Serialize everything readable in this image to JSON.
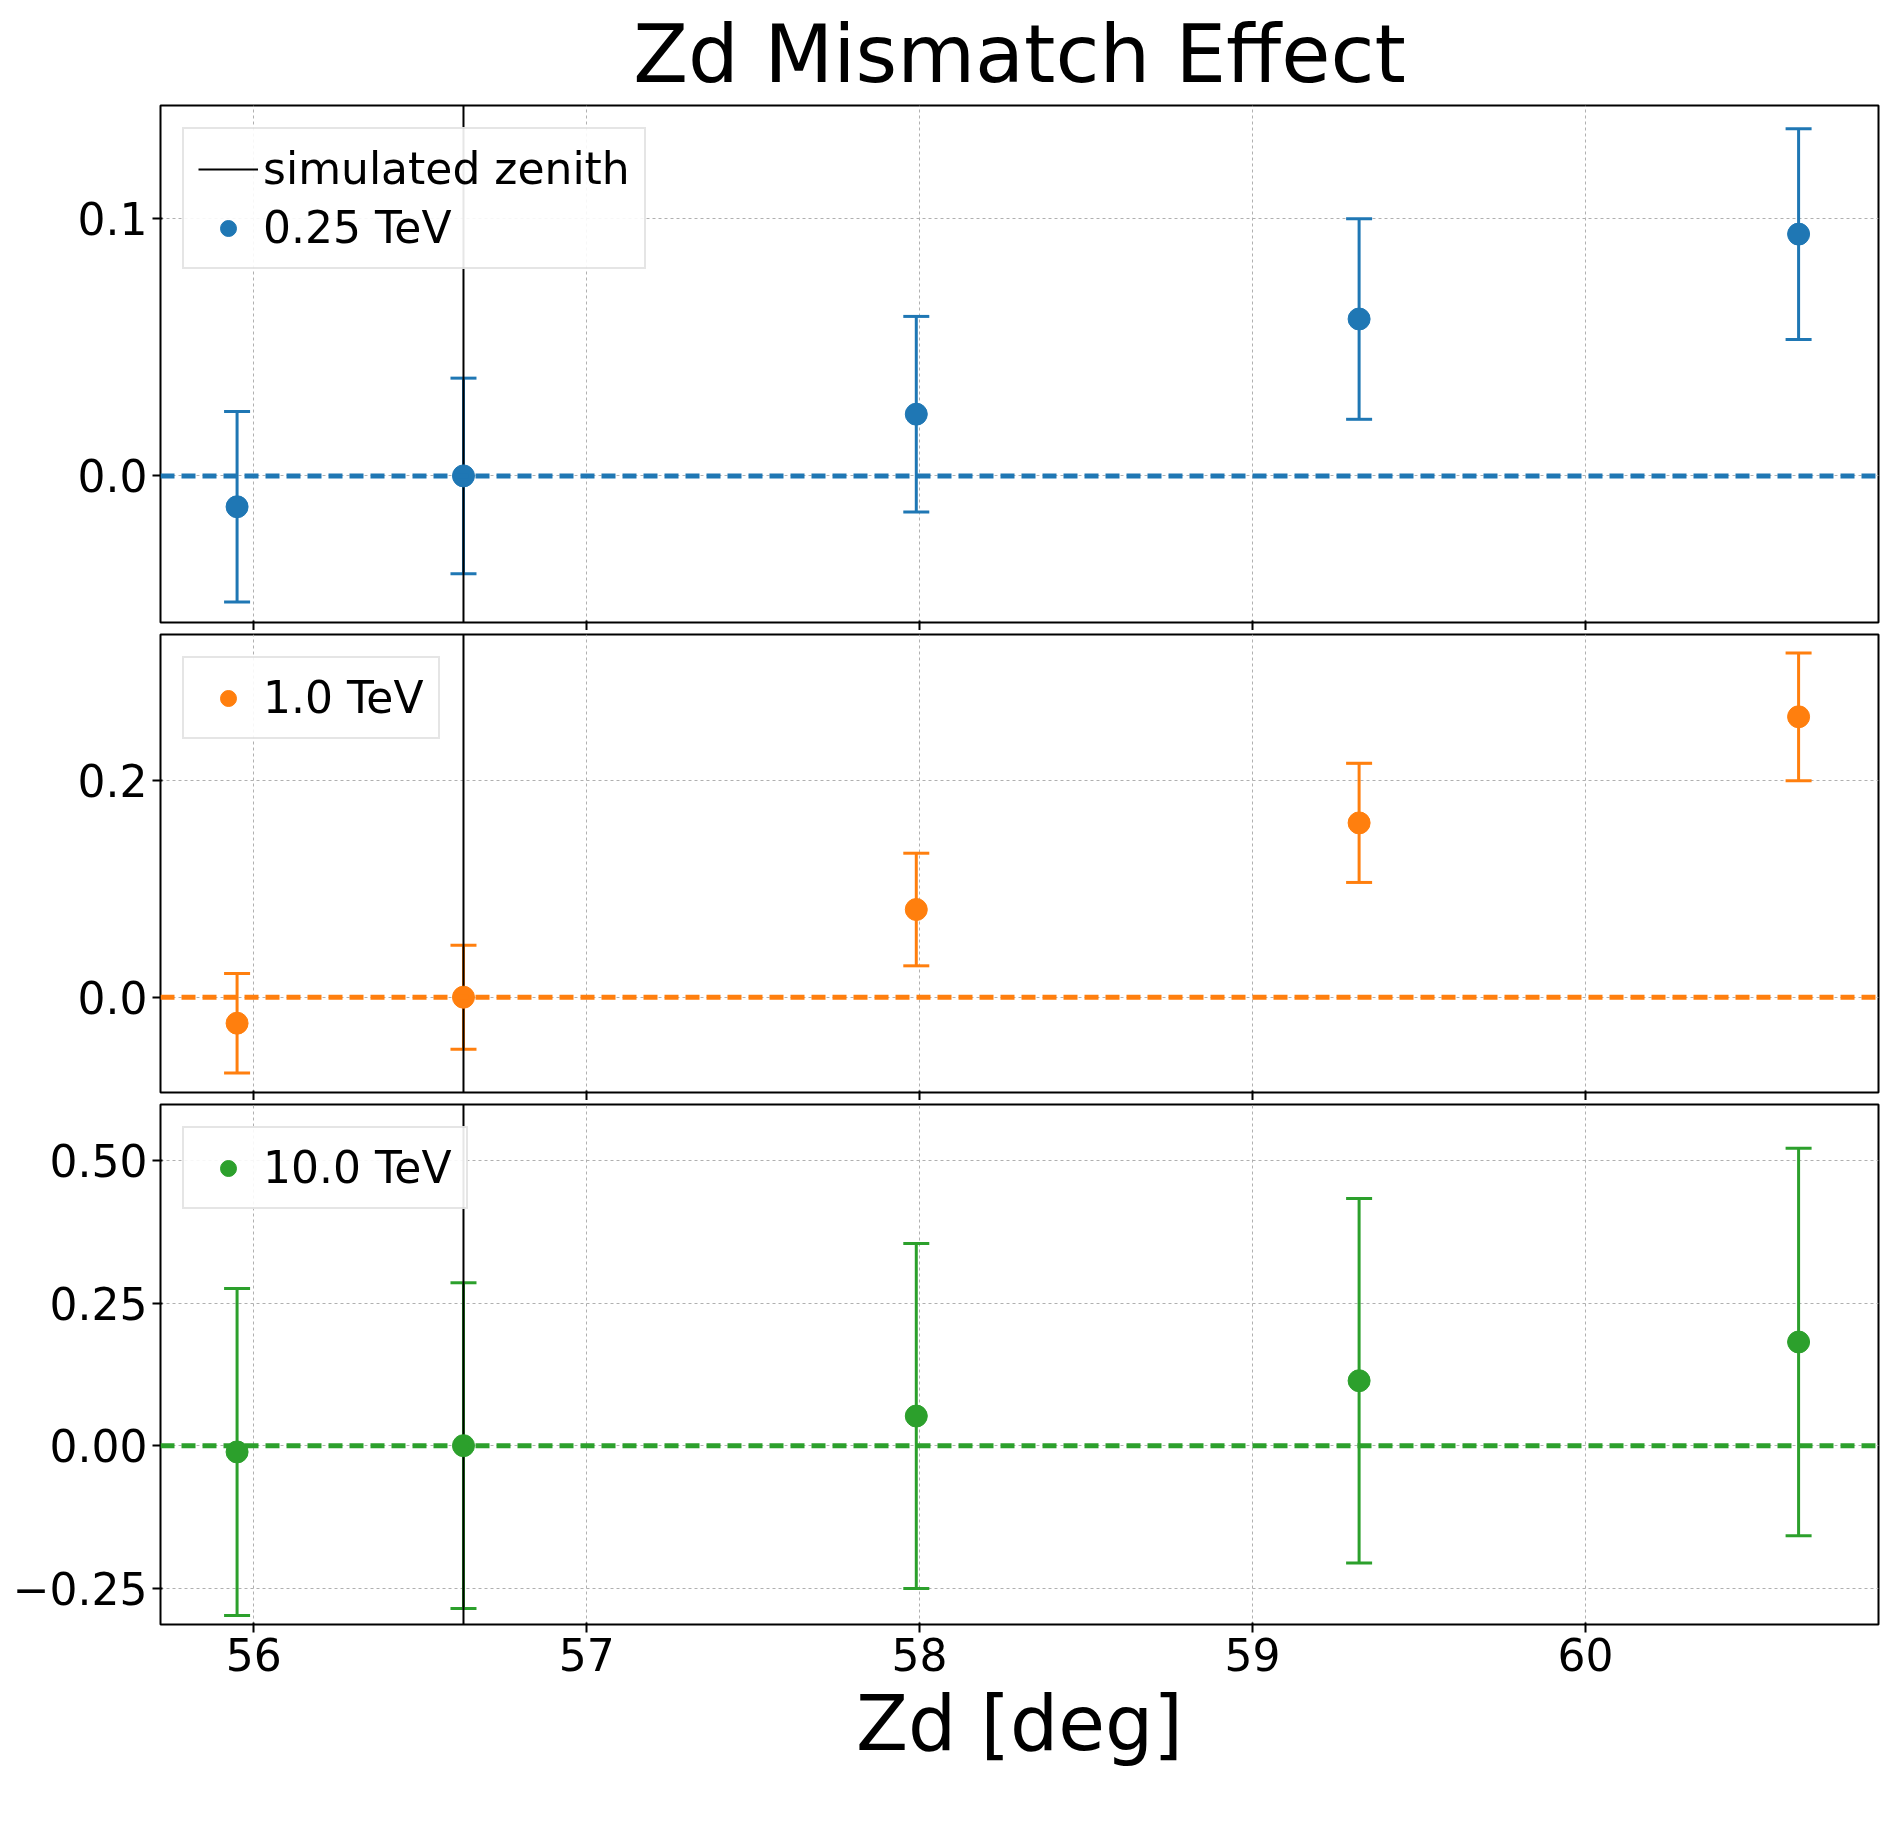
{
  "chart_data": [
    {
      "type": "scatter",
      "title": "Zd Mismatch Effect",
      "x": [
        55.95,
        56.63,
        57.99,
        59.32,
        60.64
      ],
      "series": [
        {
          "name": "0.25 TeV",
          "color": "#1f77b4",
          "values": [
            -0.012,
            0,
            0.024,
            0.061,
            0.094
          ],
          "errors": [
            0.037,
            0.038,
            0.038,
            0.039,
            0.041
          ]
        }
      ],
      "xlim": [
        55.72,
        60.88
      ],
      "ylim": [
        -0.057,
        0.144
      ],
      "yticks": [
        {
          "value": 0,
          "label": "0.0"
        },
        0.1
      ],
      "xticks": [
        56,
        57,
        58,
        59,
        60
      ],
      "tick_labels": "y",
      "ref_lines": [
        {
          "axis": "x",
          "value": 56.63,
          "label": "simulated zenith",
          "color": "#000000",
          "line_style": "solid"
        },
        {
          "axis": "y",
          "value": 0,
          "color": "#1f77b4",
          "line_style": "dashed"
        }
      ],
      "grid": true,
      "legend": "top left",
      "marker": "circle"
    },
    {
      "type": "scatter",
      "x": [
        55.95,
        56.63,
        57.99,
        59.32,
        60.64
      ],
      "series": [
        {
          "name": "1.0 TeV",
          "color": "#ff7f0e",
          "values": [
            -0.024,
            0,
            0.081,
            0.161,
            0.259
          ],
          "errors": [
            0.046,
            0.048,
            0.052,
            0.055,
            0.059
          ]
        }
      ],
      "xlim": [
        55.72,
        60.88
      ],
      "ylim": [
        -0.088,
        0.335
      ],
      "yticks": [
        {
          "value": 0,
          "label": "0.0"
        },
        0.2
      ],
      "xticks": [
        56,
        57,
        58,
        59,
        60
      ],
      "tick_labels": "y",
      "ref_lines": [
        {
          "axis": "x",
          "value": 56.63,
          "color": "#000000",
          "line_style": "solid"
        },
        {
          "axis": "y",
          "value": 0,
          "color": "#ff7f0e",
          "line_style": "dashed"
        }
      ],
      "grid": true,
      "legend": "top left",
      "marker": "circle"
    },
    {
      "type": "scatter",
      "xlabel": "Zd [deg]",
      "x": [
        55.95,
        56.63,
        57.99,
        59.32,
        60.64
      ],
      "series": [
        {
          "name": "10.0 TeV",
          "color": "#2ca02c",
          "values": [
            -0.011,
            0,
            0.052,
            0.114,
            0.182
          ],
          "errors": [
            0.287,
            0.286,
            0.303,
            0.32,
            0.34
          ]
        }
      ],
      "xlim": [
        55.72,
        60.88
      ],
      "ylim": [
        -0.314,
        0.599
      ],
      "yticks": [
        {
          "value": -0.25,
          "label": "−0.25"
        },
        {
          "value": 0,
          "label": "0.00"
        },
        {
          "value": 0.25,
          "label": "0.25"
        },
        {
          "value": 0.5,
          "label": "0.50"
        }
      ],
      "xticks": [
        56,
        57,
        58,
        59,
        60
      ],
      "ref_lines": [
        {
          "axis": "x",
          "value": 56.63,
          "color": "#000000",
          "line_style": "solid"
        },
        {
          "axis": "y",
          "value": 0,
          "color": "#2ca02c",
          "line_style": "dashed"
        }
      ],
      "grid": true,
      "legend": "top left",
      "marker": "circle"
    }
  ]
}
